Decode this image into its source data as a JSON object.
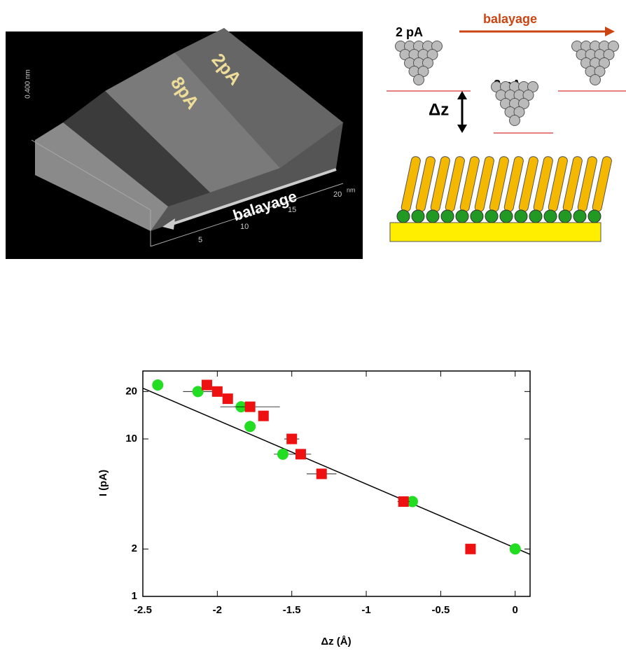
{
  "stm_image": {
    "label_2": "2pA",
    "label_8": "8pA",
    "scan": "balayage",
    "zscale": "0.400 nm",
    "ticks": [
      "5",
      "10",
      "15",
      "20"
    ],
    "unit": "nm"
  },
  "diagram": {
    "tip_1": "2 pA",
    "tip_2": "8 pA",
    "scan": "balayage",
    "dz": "Δz"
  },
  "chart_data": {
    "type": "scatter",
    "xlabel": "Δz (Å)",
    "ylabel": "I (pA)",
    "xlim": [
      -2.5,
      0.1
    ],
    "ylim": [
      1,
      27
    ],
    "ylog": true,
    "xticks": [
      -2.5,
      -2,
      -1.5,
      -1,
      -0.5,
      0
    ],
    "yticks": [
      1,
      2,
      10,
      20
    ],
    "series": [
      {
        "color": "#22dd22",
        "marker": "circle",
        "x": [
          -2.4,
          -2.13,
          -1.84,
          -1.78,
          -1.56,
          -0.69,
          0
        ],
        "values": [
          22,
          20,
          16,
          12,
          8,
          4,
          2
        ],
        "x_err": [
          null,
          0.1,
          0.05,
          null,
          0.06,
          null,
          null
        ]
      },
      {
        "color": "#ee1111",
        "marker": "square",
        "x": [
          -2.07,
          -2.0,
          -1.93,
          -1.78,
          -1.69,
          -1.5,
          -1.44,
          -1.3,
          -0.75,
          -0.3
        ],
        "values": [
          22,
          20,
          18,
          16,
          14,
          10,
          8,
          6,
          4,
          2
        ],
        "x_err": [
          null,
          null,
          null,
          0.2,
          null,
          0.05,
          0.07,
          0.1,
          0.04,
          null
        ]
      }
    ],
    "fit": {
      "color": "#000000",
      "x": [
        -2.5,
        0.1
      ],
      "values": [
        21,
        1.85
      ]
    }
  }
}
